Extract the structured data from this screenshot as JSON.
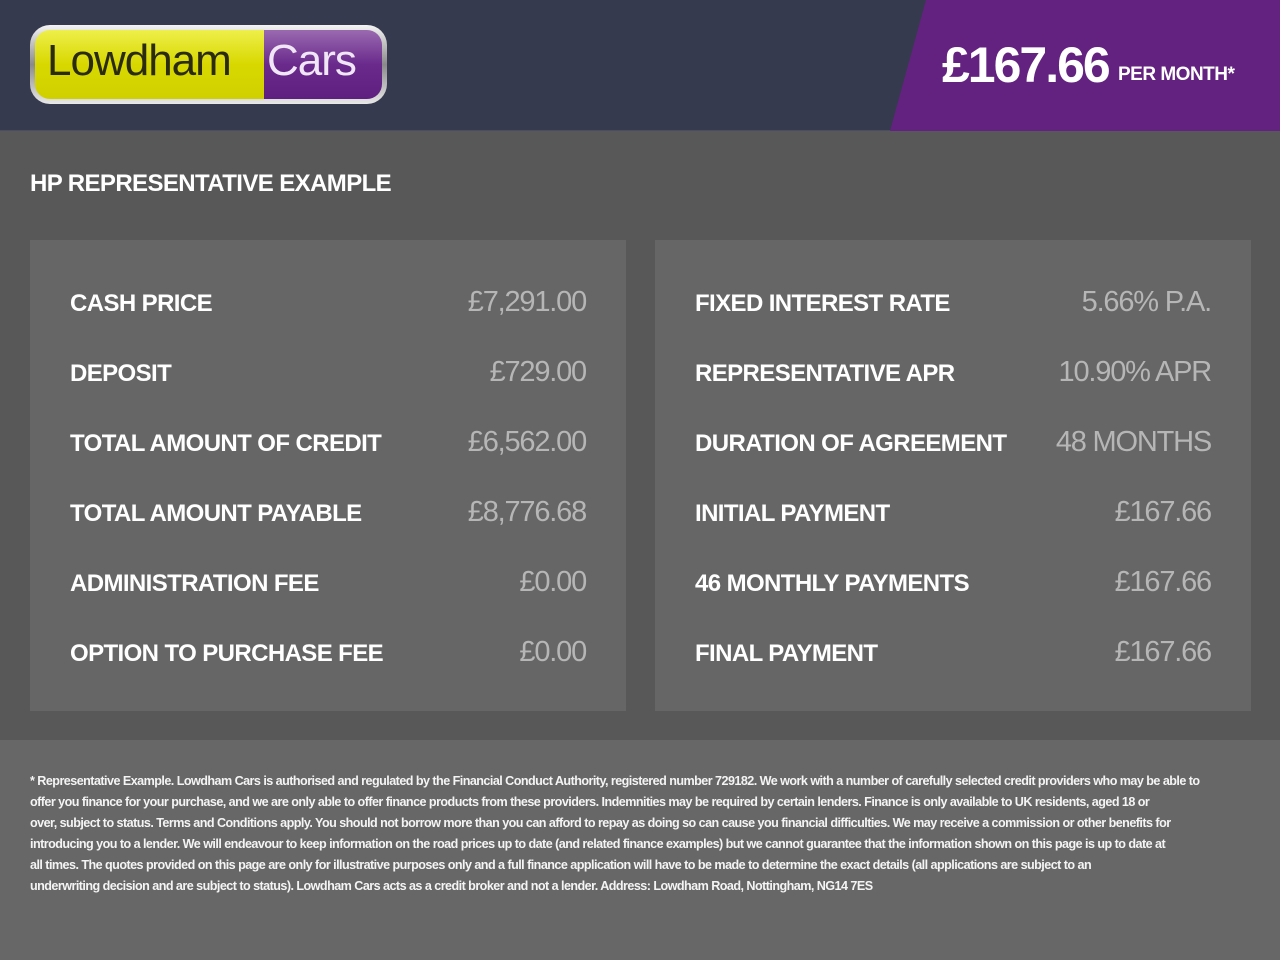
{
  "header": {
    "logo": {
      "part1": "Lowdham",
      "part2": "Cars"
    },
    "price": "£167.66",
    "per_month": "PER MONTH*",
    "colors": {
      "header_bg": "#353a4e",
      "accent_purple": "#63227f",
      "logo_yellow": "#d8d800"
    }
  },
  "title": "HP REPRESENTATIVE EXAMPLE",
  "left_panel": [
    {
      "label": "CASH PRICE",
      "value": "£7,291.00"
    },
    {
      "label": "DEPOSIT",
      "value": "£729.00"
    },
    {
      "label": "TOTAL AMOUNT OF CREDIT",
      "value": "£6,562.00"
    },
    {
      "label": "TOTAL AMOUNT PAYABLE",
      "value": "£8,776.68"
    },
    {
      "label": "ADMINISTRATION FEE",
      "value": "£0.00"
    },
    {
      "label": "OPTION TO PURCHASE FEE",
      "value": "£0.00"
    }
  ],
  "right_panel": [
    {
      "label": "FIXED INTEREST RATE",
      "value": "5.66% P.A."
    },
    {
      "label": "REPRESENTATIVE APR",
      "value": "10.90% APR"
    },
    {
      "label": "DURATION OF AGREEMENT",
      "value": "48 MONTHS"
    },
    {
      "label": "INITIAL PAYMENT",
      "value": "£167.66"
    },
    {
      "label": "46 MONTHLY PAYMENTS",
      "value": "£167.66"
    },
    {
      "label": "FINAL PAYMENT",
      "value": "£167.66"
    }
  ],
  "disclaimer": [
    "* Representative Example. Lowdham Cars is authorised and regulated by the Financial Conduct Authority, registered number 729182. We work with a number of carefully selected credit providers who may be able to",
    "offer you finance for your purchase, and we are only able to offer finance products from these providers. Indemnities may be required by certain lenders. Finance is only available to UK residents, aged 18 or",
    "over, subject to status. Terms and Conditions apply. You should not borrow more than you can afford to repay as doing so can cause you financial difficulties. We may receive a commission or other benefits for",
    "introducing you to a lender. We will endeavour to keep information on the road prices up to date (and related finance examples) but we cannot guarantee that the information shown on this page is up to date at",
    "all times. The quotes provided on this page are only for illustrative purposes only and a full finance application will have to be made to determine the exact details (all applications are subject to an",
    "underwriting decision and are subject to status). Lowdham Cars acts as a credit broker and not a lender. Address: Lowdham Road, Nottingham, NG14 7ES"
  ]
}
